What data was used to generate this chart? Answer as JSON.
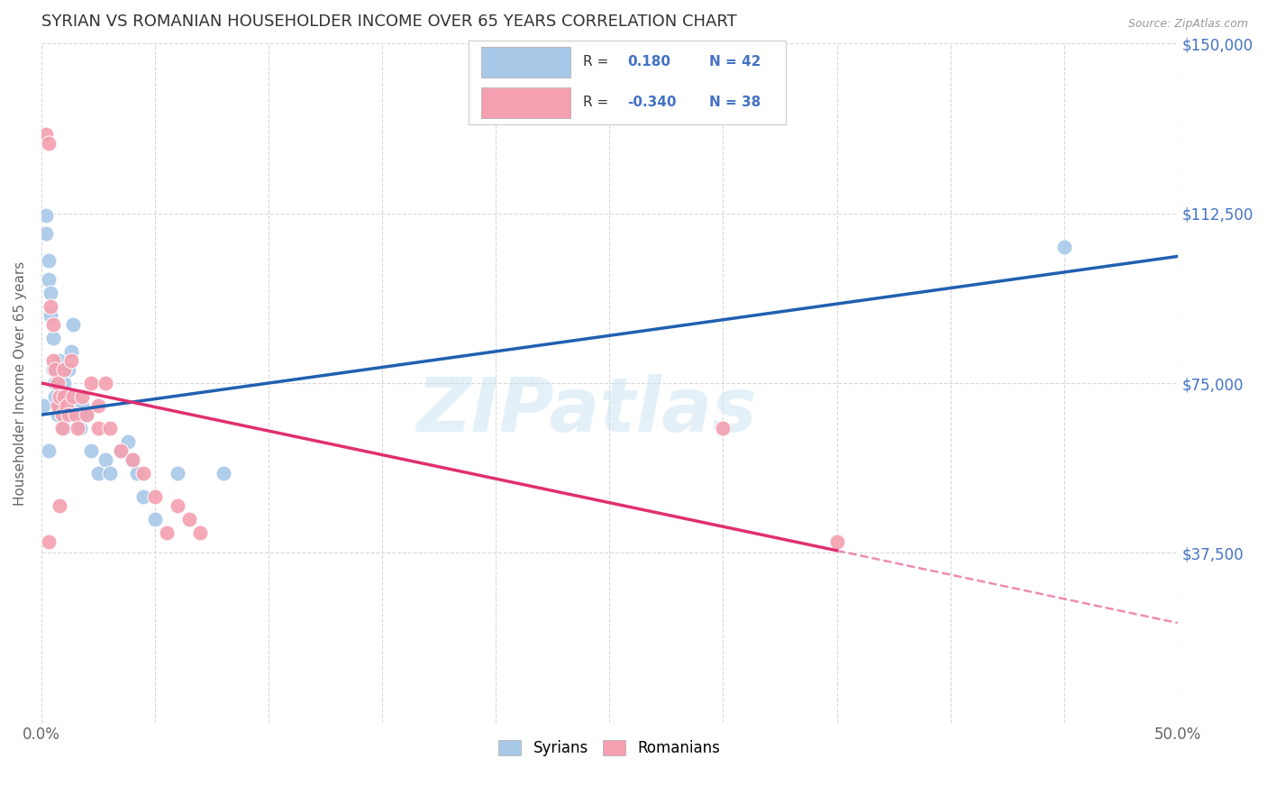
{
  "title": "SYRIAN VS ROMANIAN HOUSEHOLDER INCOME OVER 65 YEARS CORRELATION CHART",
  "source": "Source: ZipAtlas.com",
  "ylabel": "Householder Income Over 65 years",
  "xlim": [
    0.0,
    0.5
  ],
  "ylim": [
    0,
    150000
  ],
  "yticks": [
    0,
    37500,
    75000,
    112500,
    150000
  ],
  "ytick_labels": [
    "",
    "$37,500",
    "$75,000",
    "$112,500",
    "$150,000"
  ],
  "xtick_positions": [
    0.0,
    0.05,
    0.1,
    0.15,
    0.2,
    0.25,
    0.3,
    0.35,
    0.4,
    0.45,
    0.5
  ],
  "background_color": "#ffffff",
  "grid_color": "#d8d8d8",
  "watermark": "ZIPatlas",
  "legend_syrian_label": "Syrians",
  "legend_romanian_label": "Romanians",
  "syrian_R": "0.180",
  "syrian_N": "42",
  "romanian_R": "-0.340",
  "romanian_N": "38",
  "syrian_color": "#a8c8e8",
  "romanian_color": "#f4a0b0",
  "syrian_line_color": "#2060b0",
  "romanian_line_color": "#e03070",
  "title_color": "#333333",
  "label_color": "#4472c4",
  "syrian_line_x0": 0.0,
  "syrian_line_y0": 68000,
  "syrian_line_x1": 0.5,
  "syrian_line_y1": 103000,
  "romanian_line_x0": 0.0,
  "romanian_line_y0": 75000,
  "romanian_line_x1_solid": 0.35,
  "romanian_line_y1_solid": 38000,
  "romanian_line_x1_dash": 0.5,
  "romanian_line_y1_dash": 22000,
  "syrians_x": [
    0.001,
    0.002,
    0.002,
    0.003,
    0.003,
    0.004,
    0.004,
    0.005,
    0.005,
    0.006,
    0.006,
    0.007,
    0.007,
    0.008,
    0.008,
    0.009,
    0.009,
    0.01,
    0.01,
    0.011,
    0.012,
    0.013,
    0.014,
    0.015,
    0.016,
    0.017,
    0.018,
    0.02,
    0.022,
    0.025,
    0.028,
    0.03,
    0.035,
    0.038,
    0.04,
    0.042,
    0.045,
    0.05,
    0.06,
    0.08,
    0.45,
    0.003
  ],
  "syrians_y": [
    70000,
    112000,
    108000,
    102000,
    98000,
    95000,
    90000,
    85000,
    78000,
    75000,
    72000,
    68000,
    75000,
    70000,
    80000,
    72000,
    68000,
    75000,
    65000,
    70000,
    78000,
    82000,
    88000,
    72000,
    68000,
    65000,
    70000,
    68000,
    60000,
    55000,
    58000,
    55000,
    60000,
    62000,
    58000,
    55000,
    50000,
    45000,
    55000,
    55000,
    105000,
    60000
  ],
  "romanians_x": [
    0.002,
    0.003,
    0.004,
    0.005,
    0.005,
    0.006,
    0.007,
    0.007,
    0.008,
    0.009,
    0.009,
    0.01,
    0.01,
    0.011,
    0.012,
    0.013,
    0.014,
    0.015,
    0.016,
    0.018,
    0.02,
    0.022,
    0.025,
    0.025,
    0.028,
    0.03,
    0.035,
    0.04,
    0.045,
    0.05,
    0.055,
    0.06,
    0.065,
    0.07,
    0.3,
    0.35,
    0.003,
    0.008
  ],
  "romanians_y": [
    130000,
    128000,
    92000,
    88000,
    80000,
    78000,
    75000,
    70000,
    72000,
    68000,
    65000,
    78000,
    72000,
    70000,
    68000,
    80000,
    72000,
    68000,
    65000,
    72000,
    68000,
    75000,
    70000,
    65000,
    75000,
    65000,
    60000,
    58000,
    55000,
    50000,
    42000,
    48000,
    45000,
    42000,
    65000,
    40000,
    40000,
    48000
  ]
}
